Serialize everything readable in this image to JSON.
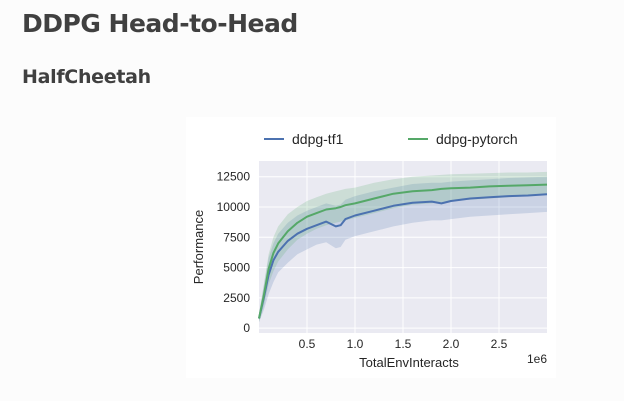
{
  "page": {
    "title": "DDPG Head-to-Head",
    "section": "HalfCheetah"
  },
  "colors": {
    "plot_bg": "#eaeaf2",
    "grid": "#ffffff",
    "text": "#262626",
    "series_tf1": "#4c72b0",
    "series_pytorch": "#55a868"
  },
  "chart_data": {
    "type": "line",
    "xlabel": "TotalEnvInteracts",
    "ylabel": "Performance",
    "x_offset_label": "1e6",
    "xlim": [
      0,
      3.0
    ],
    "ylim": [
      -400,
      13800
    ],
    "xticks": [
      0.5,
      1.0,
      1.5,
      2.0,
      2.5
    ],
    "xtick_labels": [
      "0.5",
      "1.0",
      "1.5",
      "2.0",
      "2.5"
    ],
    "yticks": [
      0,
      2500,
      5000,
      7500,
      10000,
      12500
    ],
    "ytick_labels": [
      "0",
      "2500",
      "5000",
      "7500",
      "10000",
      "12500"
    ],
    "grid": true,
    "legend_position": "top",
    "x": [
      0.0,
      0.05,
      0.1,
      0.15,
      0.2,
      0.3,
      0.4,
      0.5,
      0.6,
      0.7,
      0.8,
      0.85,
      0.9,
      1.0,
      1.2,
      1.4,
      1.6,
      1.8,
      1.9,
      2.0,
      2.2,
      2.4,
      2.6,
      2.8,
      3.0
    ],
    "series": [
      {
        "name": "ddpg-tf1",
        "color": "#4c72b0",
        "values": [
          800,
          2500,
          4400,
          5600,
          6300,
          7200,
          7800,
          8200,
          8500,
          8800,
          8400,
          8500,
          9000,
          9300,
          9700,
          10100,
          10350,
          10450,
          10300,
          10500,
          10700,
          10800,
          10900,
          10950,
          11050
        ],
        "band_low": [
          500,
          1500,
          2800,
          3800,
          4600,
          5400,
          6100,
          6500,
          6900,
          7100,
          6600,
          6700,
          7300,
          7600,
          8000,
          8400,
          8700,
          8900,
          8900,
          9000,
          9200,
          9300,
          9400,
          9500,
          9600
        ],
        "band_high": [
          1200,
          3500,
          5800,
          7000,
          7800,
          8700,
          9300,
          9700,
          10000,
          10300,
          10100,
          10200,
          10600,
          10900,
          11300,
          11600,
          11900,
          12000,
          12000,
          12100,
          12200,
          12300,
          12400,
          12450,
          12500
        ]
      },
      {
        "name": "ddpg-pytorch",
        "color": "#55a868",
        "values": [
          800,
          2700,
          4900,
          6200,
          7000,
          8000,
          8700,
          9200,
          9500,
          9800,
          9900,
          10000,
          10150,
          10300,
          10700,
          11100,
          11300,
          11400,
          11500,
          11550,
          11600,
          11700,
          11750,
          11800,
          11850
        ],
        "band_low": [
          500,
          1800,
          3600,
          4700,
          5500,
          6500,
          7300,
          7800,
          8200,
          8500,
          8700,
          8800,
          8900,
          9100,
          9500,
          9900,
          10200,
          10300,
          10400,
          10500,
          10600,
          10700,
          10800,
          10900,
          11000
        ],
        "band_high": [
          1200,
          3600,
          6100,
          7500,
          8400,
          9400,
          10000,
          10500,
          10800,
          11100,
          11300,
          11400,
          11500,
          11600,
          12000,
          12300,
          12500,
          12600,
          12650,
          12700,
          12750,
          12800,
          12850,
          12850,
          12900
        ]
      }
    ]
  }
}
